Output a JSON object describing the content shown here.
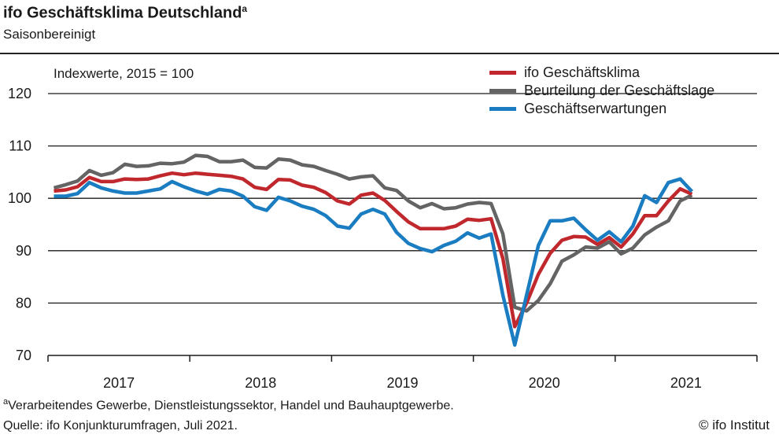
{
  "title": "ifo Geschäftsklima Deutschland",
  "title_footnote_mark": "a",
  "subtitle": "Saisonbereinigt",
  "footnote_mark": "a",
  "footnote": "Verarbeitendes Gewerbe, Dienstleistungssektor, Handel und Bauhauptgewerbe.",
  "source": "Quelle: ifo Konjunkturumfragen, Juli 2021.",
  "copyright": "© ifo Institut",
  "chart_data": {
    "type": "line",
    "unit_label": "Indexwerte, 2015 = 100",
    "x_start": "2017-01",
    "x_end": "2021-07",
    "x_frequency": "monthly",
    "x_tick_labels": [
      "2017",
      "2018",
      "2019",
      "2020",
      "2021"
    ],
    "y_ticks": [
      70,
      80,
      90,
      100,
      110,
      120
    ],
    "ylim": [
      70,
      120
    ],
    "grid": "horizontal",
    "legend_position": "top-right",
    "series": [
      {
        "name": "ifo Geschäftsklima",
        "color": "#c0282d",
        "values": [
          101.4,
          101.6,
          102.2,
          104.0,
          103.2,
          103.2,
          103.7,
          103.6,
          103.7,
          104.3,
          104.8,
          104.5,
          104.8,
          104.6,
          104.4,
          104.2,
          103.7,
          102.1,
          101.7,
          103.6,
          103.5,
          102.5,
          102.1,
          101.1,
          99.5,
          98.9,
          100.6,
          101.0,
          99.6,
          97.5,
          95.5,
          94.2,
          94.2,
          94.2,
          94.7,
          96.0,
          95.8,
          96.1,
          88.5,
          75.5,
          80.0,
          85.5,
          89.5,
          92.0,
          92.7,
          92.6,
          91.2,
          92.5,
          90.7,
          93.2,
          96.7,
          96.7,
          99.5,
          101.8,
          100.8
        ]
      },
      {
        "name": "Beurteilung der Geschäftslage",
        "color": "#646464",
        "values": [
          102.0,
          102.6,
          103.3,
          105.3,
          104.4,
          104.9,
          106.5,
          106.1,
          106.2,
          106.7,
          106.6,
          106.9,
          108.2,
          108.0,
          107.0,
          107.0,
          107.3,
          105.9,
          105.8,
          107.5,
          107.3,
          106.4,
          106.1,
          105.3,
          104.6,
          103.7,
          104.1,
          104.3,
          102.0,
          101.5,
          99.5,
          98.2,
          99.0,
          98.0,
          98.2,
          98.9,
          99.2,
          99.0,
          93.2,
          79.2,
          78.5,
          80.5,
          83.7,
          88.0,
          89.2,
          90.7,
          90.5,
          91.7,
          89.4,
          90.5,
          93.0,
          94.5,
          95.7,
          99.5,
          100.6
        ]
      },
      {
        "name": "Geschäftserwartungen",
        "color": "#1a7cc1",
        "values": [
          100.4,
          100.4,
          100.9,
          103.0,
          102.0,
          101.4,
          101.0,
          101.0,
          101.4,
          101.8,
          103.2,
          102.2,
          101.4,
          100.8,
          101.7,
          101.4,
          100.4,
          98.4,
          97.7,
          100.2,
          99.5,
          98.5,
          97.9,
          96.7,
          94.7,
          94.3,
          97.0,
          97.9,
          97.0,
          93.5,
          91.4,
          90.4,
          89.8,
          91.0,
          91.8,
          93.4,
          92.4,
          93.2,
          81.5,
          72.0,
          81.5,
          91.0,
          95.7,
          95.7,
          96.2,
          94.0,
          92.0,
          93.6,
          91.7,
          94.7,
          100.5,
          99.2,
          103.0,
          103.7,
          101.3
        ]
      }
    ]
  }
}
